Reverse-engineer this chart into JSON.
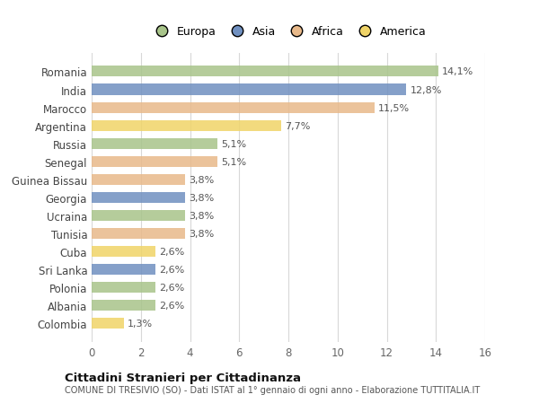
{
  "countries": [
    "Romania",
    "India",
    "Marocco",
    "Argentina",
    "Russia",
    "Senegal",
    "Guinea Bissau",
    "Georgia",
    "Ucraina",
    "Tunisia",
    "Cuba",
    "Sri Lanka",
    "Polonia",
    "Albania",
    "Colombia"
  ],
  "values": [
    14.1,
    12.8,
    11.5,
    7.7,
    5.1,
    5.1,
    3.8,
    3.8,
    3.8,
    3.8,
    2.6,
    2.6,
    2.6,
    2.6,
    1.3
  ],
  "labels": [
    "14,1%",
    "12,8%",
    "11,5%",
    "7,7%",
    "5,1%",
    "5,1%",
    "3,8%",
    "3,8%",
    "3,8%",
    "3,8%",
    "2,6%",
    "2,6%",
    "2,6%",
    "2,6%",
    "1,3%"
  ],
  "continents": [
    "Europa",
    "Asia",
    "Africa",
    "America",
    "Europa",
    "Africa",
    "Africa",
    "Asia",
    "Europa",
    "Africa",
    "America",
    "Asia",
    "Europa",
    "Europa",
    "America"
  ],
  "continent_colors": {
    "Europa": "#a8c48a",
    "Asia": "#7090c0",
    "Africa": "#e8b98a",
    "America": "#f0d468"
  },
  "legend_order": [
    "Europa",
    "Asia",
    "Africa",
    "America"
  ],
  "xlim": [
    0,
    16
  ],
  "xticks": [
    0,
    2,
    4,
    6,
    8,
    10,
    12,
    14,
    16
  ],
  "title": "Cittadini Stranieri per Cittadinanza",
  "subtitle": "COMUNE DI TRESIVIO (SO) - Dati ISTAT al 1° gennaio di ogni anno - Elaborazione TUTTITALIA.IT",
  "bg_color": "#ffffff",
  "grid_color": "#d8d8d8",
  "bar_height": 0.6
}
